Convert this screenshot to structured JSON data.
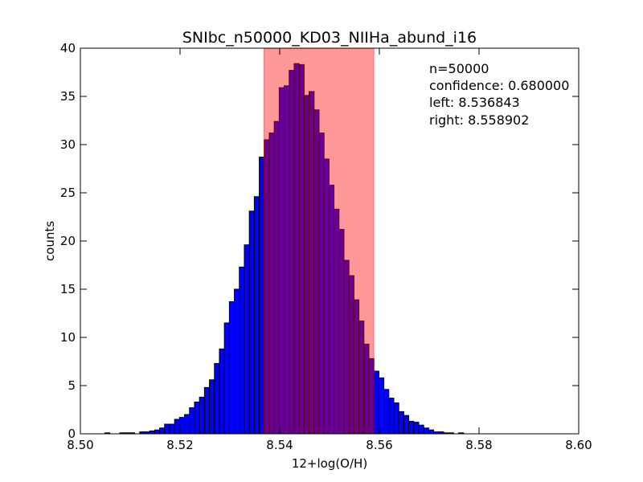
{
  "chart_data": {
    "type": "bar",
    "title": "SNIbc_n50000_KD03_NIIHa_abund_i16",
    "xlabel": "12+log(O/H)",
    "ylabel": "counts",
    "xlim": [
      8.5,
      8.6
    ],
    "ylim": [
      0,
      40
    ],
    "xticks": [
      8.5,
      8.52,
      8.54,
      8.56,
      8.58,
      8.6
    ],
    "xtick_labels": [
      "8.50",
      "8.52",
      "8.54",
      "8.56",
      "8.58",
      "8.60"
    ],
    "yticks": [
      0,
      5,
      10,
      15,
      20,
      25,
      30,
      35,
      40
    ],
    "ytick_labels": [
      "0",
      "5",
      "10",
      "15",
      "20",
      "25",
      "30",
      "35",
      "40"
    ],
    "grid": false,
    "bin_width": 0.001,
    "bins_start": [
      8.5049,
      8.5059,
      8.5069,
      8.5079,
      8.5089,
      8.5099,
      8.5109,
      8.5119,
      8.5129,
      8.5139,
      8.5149,
      8.5159,
      8.5169,
      8.5179,
      8.5189,
      8.5199,
      8.5209,
      8.5219,
      8.5229,
      8.5239,
      8.5249,
      8.5259,
      8.5269,
      8.5279,
      8.5289,
      8.5299,
      8.5309,
      8.5319,
      8.5329,
      8.5339,
      8.5349,
      8.5359,
      8.5369,
      8.5379,
      8.5389,
      8.5399,
      8.5409,
      8.5419,
      8.5429,
      8.5439,
      8.5449,
      8.5459,
      8.5469,
      8.5479,
      8.5489,
      8.5499,
      8.5509,
      8.5519,
      8.5529,
      8.5539,
      8.5549,
      8.5559,
      8.5569,
      8.5579,
      8.5589,
      8.5599,
      8.5609,
      8.5619,
      8.5629,
      8.5639,
      8.5649,
      8.5659,
      8.5669,
      8.5679,
      8.5689,
      8.5699,
      8.5709,
      8.5719,
      8.5729,
      8.5739,
      8.5749,
      8.5759,
      8.5769,
      8.5779,
      8.5789,
      8.5799,
      8.5809,
      8.5819,
      8.5829,
      8.5839,
      8.5849,
      8.5859,
      8.5869,
      8.5879,
      8.5889,
      8.5899,
      8.5909,
      8.5919,
      8.5929,
      8.5939
    ],
    "values": [
      0.1,
      0.0,
      0.0,
      0.1,
      0.1,
      0.1,
      0.0,
      0.2,
      0.2,
      0.3,
      0.4,
      0.6,
      1.0,
      1.0,
      1.5,
      1.7,
      2.0,
      2.7,
      3.3,
      3.8,
      4.8,
      5.6,
      7.3,
      8.8,
      11.5,
      13.7,
      15.0,
      17.3,
      19.6,
      23.1,
      24.6,
      28.7,
      30.5,
      31.2,
      32.4,
      35.9,
      36.1,
      37.7,
      38.4,
      38.3,
      35.1,
      35.5,
      33.6,
      31.2,
      28.5,
      25.8,
      23.3,
      21.2,
      18.0,
      16.4,
      13.9,
      11.7,
      9.3,
      7.8,
      6.5,
      5.8,
      4.6,
      3.7,
      3.2,
      2.3,
      1.9,
      1.3,
      1.2,
      0.9,
      0.6,
      0.4,
      0.2,
      0.2,
      0.1,
      0.1,
      0.0,
      0.1,
      0.0,
      0.0,
      0.0,
      0.0,
      0.0,
      0.0,
      0.0,
      0.0,
      0.0,
      0.0,
      0.0,
      0.0,
      0.0,
      0.0,
      0.0,
      0.0,
      0.0,
      0.0
    ],
    "bar_color": "#0000ff",
    "bar_edge_color": "#000000",
    "confidence_band": {
      "left": 8.536843,
      "right": 8.558902,
      "color": "#ff0000",
      "opacity": 0.4
    },
    "annotations": [
      "n=50000",
      "confidence: 0.680000",
      "left: 8.536843",
      "right: 8.558902"
    ],
    "annotation_placement": "top-right"
  }
}
